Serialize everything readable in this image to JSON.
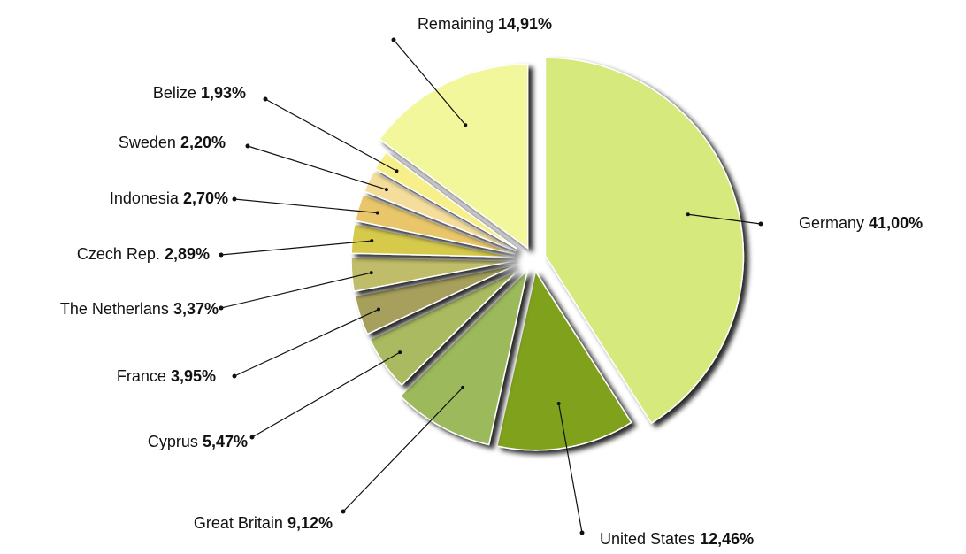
{
  "chart_data": {
    "type": "pie",
    "categories": [
      "Germany",
      "United States",
      "Great Britain",
      "Cyprus",
      "France",
      "The Netherlans",
      "Czech Rep.",
      "Indonesia",
      "Sweden",
      "Belize",
      "Remaining"
    ],
    "values": [
      41.0,
      12.46,
      9.12,
      5.47,
      3.95,
      3.37,
      2.89,
      2.7,
      2.2,
      1.93,
      14.91
    ],
    "value_labels": [
      "41,00%",
      "12,46%",
      "9,12%",
      "5,47%",
      "3,95%",
      "3,37%",
      "2,89%",
      "2,70%",
      "2,20%",
      "1,93%",
      "14,91%"
    ],
    "colors": [
      "#d5e97c",
      "#7fa11e",
      "#9cba5c",
      "#a9ba60",
      "#a6a05c",
      "#bfbd6b",
      "#d6ca4c",
      "#e9c66b",
      "#f5dd9c",
      "#f7f08a",
      "#f3f79c"
    ]
  }
}
